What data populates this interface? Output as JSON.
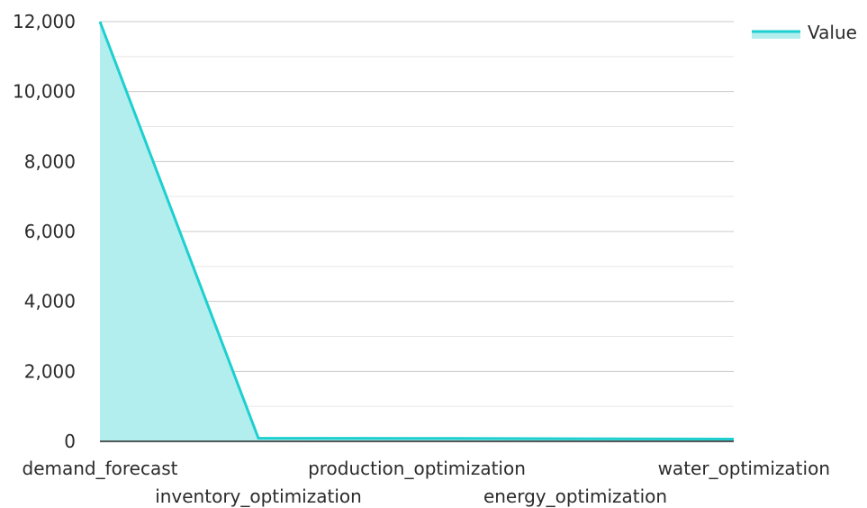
{
  "chart_data": {
    "type": "area",
    "categories": [
      "demand_forecast",
      "inventory_optimization",
      "production_optimization",
      "energy_optimization",
      "water_optimization"
    ],
    "series": [
      {
        "name": "Value",
        "values": [
          12000,
          90,
          85,
          75,
          65
        ]
      }
    ],
    "ylim": [
      0,
      12000
    ],
    "yticks": [
      0,
      2000,
      4000,
      6000,
      8000,
      10000,
      12000
    ],
    "ytick_labels": [
      "0",
      "2,000",
      "4,000",
      "6,000",
      "8,000",
      "10,000",
      "12,000"
    ],
    "grid": true,
    "legend_position": "top-right",
    "colors": {
      "line": "#1ecfcf",
      "fill": "#b2eeee",
      "grid": "#c8c8c8",
      "axis": "#222222"
    }
  }
}
